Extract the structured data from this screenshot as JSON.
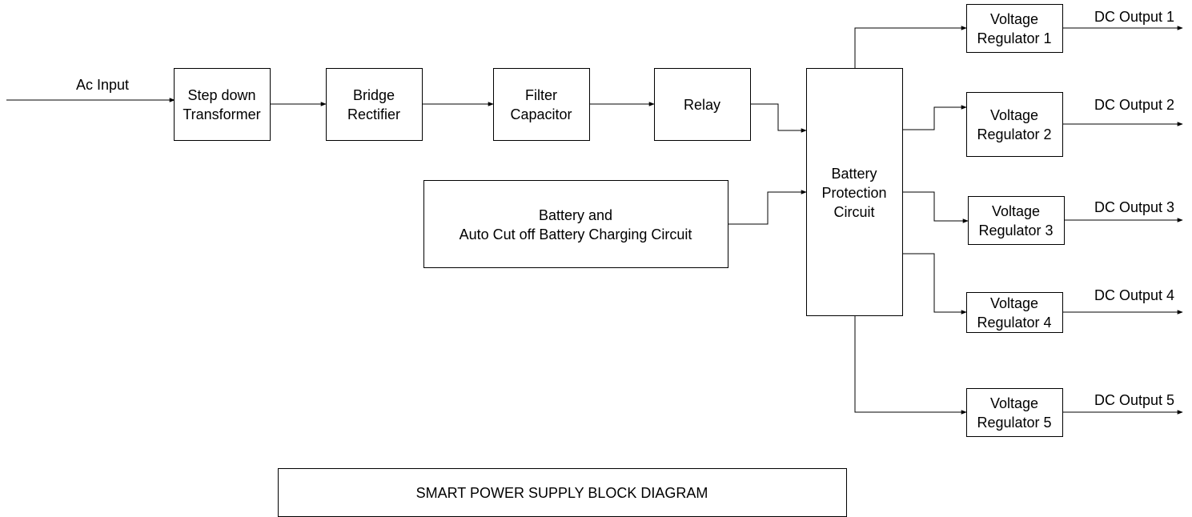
{
  "input_label": "Ac Input",
  "blocks": {
    "step_down_transformer": [
      "Step down",
      "Transformer"
    ],
    "bridge_rectifier": [
      "Bridge",
      "Rectifier"
    ],
    "filter_capacitor": [
      "Filter",
      "Capacitor"
    ],
    "relay": [
      "Relay"
    ],
    "battery_charging": [
      "Battery and",
      "Auto Cut off Battery Charging Circuit"
    ],
    "battery_protection": [
      "Battery",
      "Protection",
      "Circuit"
    ],
    "regulators": [
      [
        "Voltage",
        "Regulator 1"
      ],
      [
        "Voltage",
        "Regulator 2"
      ],
      [
        "Voltage",
        "Regulator 3"
      ],
      [
        "Voltage",
        "Regulator 4"
      ],
      [
        "Voltage",
        "Regulator 5"
      ]
    ]
  },
  "outputs": [
    "DC Output 1",
    "DC Output 2",
    "DC Output 3",
    "DC Output 4",
    "DC Output 5"
  ],
  "title": "SMART POWER SUPPLY BLOCK DIAGRAM"
}
